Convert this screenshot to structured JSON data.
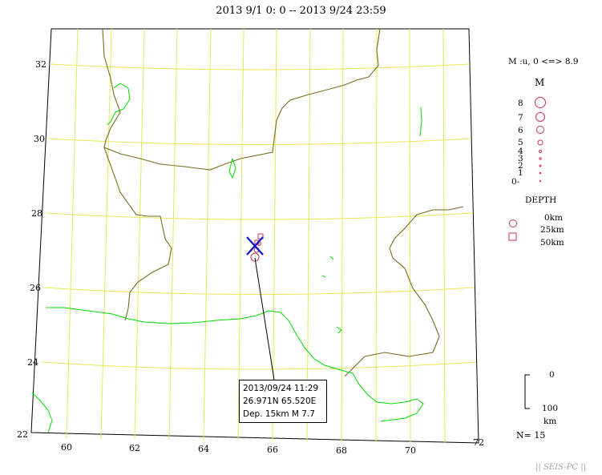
{
  "title": "2013 9/1 0: 0 -- 2013 9/24 23:59",
  "credit": "|| SEIS-PC ||",
  "count_label": "N= 15",
  "map": {
    "lat_ticks": [
      "32",
      "30",
      "28",
      "26",
      "24",
      "22"
    ],
    "lon_ticks": [
      "60",
      "62",
      "64",
      "66",
      "68",
      "70",
      "72"
    ]
  },
  "magnitude_legend": {
    "range_label": "M :u, 0 <=> 8.9",
    "heading": "M",
    "levels": [
      "8",
      "7",
      "6",
      "5",
      "4",
      "3",
      "2",
      "1",
      "0-"
    ]
  },
  "depth_legend": {
    "heading": "DEPTH",
    "entries": [
      "0km",
      "25km",
      "50km"
    ],
    "scale_top": "0",
    "scale_bottom": "100",
    "scale_unit": "km"
  },
  "callout": {
    "datetime": "2013/09/24  11:29",
    "location": "26.971N  65.520E",
    "depth_mag": "Dep. 15km    M 7.7"
  },
  "colors": {
    "grid": "#e8e85a",
    "border": "#7a6a1e",
    "coast": "#00dd00",
    "event": "#cc3355",
    "marker": "#1a1acc"
  }
}
